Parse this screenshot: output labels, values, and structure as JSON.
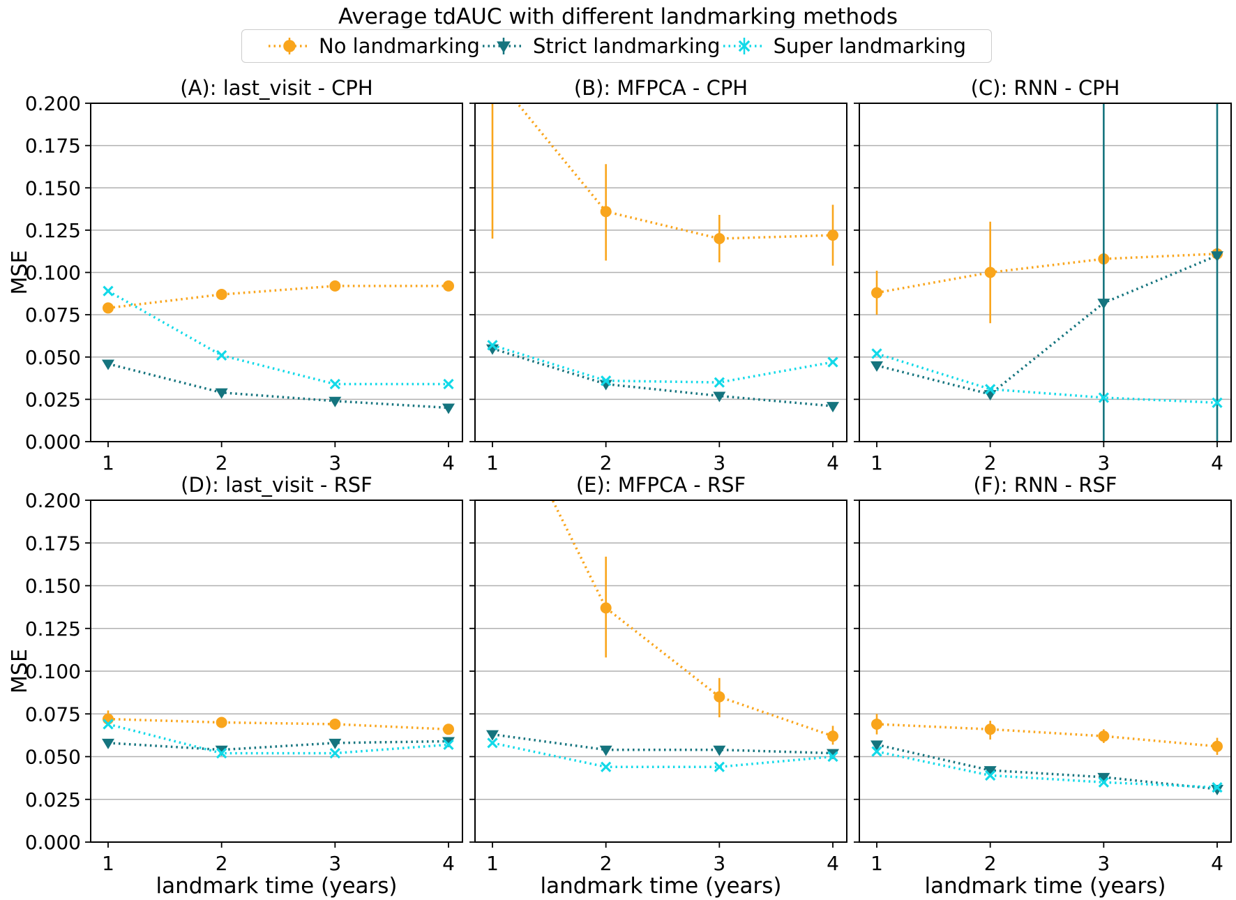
{
  "title": "Average tdAUC with different landmarking methods",
  "legend": [
    {
      "label": "No landmarking",
      "color": "#F9A51C",
      "marker": "circle"
    },
    {
      "label": "Strict landmarking",
      "color": "#15747E",
      "marker": "triangle-down"
    },
    {
      "label": "Super landmarking",
      "color": "#12D9E8",
      "marker": "x"
    }
  ],
  "axes": {
    "ylabel": "MSE",
    "xlabel": "landmark time (years)",
    "ylim": [
      0,
      0.2
    ],
    "ytick_labels": [
      "0.000",
      "0.025",
      "0.050",
      "0.075",
      "0.100",
      "0.125",
      "0.150",
      "0.175",
      "0.200"
    ],
    "xtick_labels": [
      "1",
      "2",
      "3",
      "4"
    ],
    "grid": true,
    "legend_position": "top-center"
  },
  "chart_data": [
    {
      "panel": "A",
      "title": "(A): last_visit - CPH",
      "type": "line",
      "x": [
        1,
        2,
        3,
        4
      ],
      "series": [
        {
          "name": "No landmarking",
          "values": [
            0.079,
            0.087,
            0.092,
            0.092
          ],
          "err_lo": [
            null,
            null,
            null,
            null
          ],
          "err_hi": [
            null,
            null,
            null,
            null
          ]
        },
        {
          "name": "Strict landmarking",
          "values": [
            0.046,
            0.029,
            0.024,
            0.02
          ],
          "err_lo": [
            null,
            null,
            null,
            null
          ],
          "err_hi": [
            null,
            null,
            null,
            null
          ]
        },
        {
          "name": "Super landmarking",
          "values": [
            0.089,
            0.051,
            0.034,
            0.034
          ],
          "err_lo": [
            null,
            null,
            null,
            null
          ],
          "err_hi": [
            null,
            null,
            null,
            null
          ]
        }
      ]
    },
    {
      "panel": "B",
      "title": "(B): MFPCA - CPH",
      "type": "line",
      "x": [
        1,
        2,
        3,
        4
      ],
      "series": [
        {
          "name": "No landmarking",
          "values": [
            0.218,
            0.136,
            0.12,
            0.122
          ],
          "err_lo": [
            0.12,
            0.107,
            0.106,
            0.104
          ],
          "err_hi": [
            0.33,
            0.164,
            0.134,
            0.14
          ]
        },
        {
          "name": "Strict landmarking",
          "values": [
            0.055,
            0.034,
            0.027,
            0.021
          ],
          "err_lo": [
            null,
            null,
            null,
            null
          ],
          "err_hi": [
            null,
            null,
            null,
            null
          ]
        },
        {
          "name": "Super landmarking",
          "values": [
            0.057,
            0.036,
            0.035,
            0.047
          ],
          "err_lo": [
            null,
            null,
            null,
            null
          ],
          "err_hi": [
            null,
            null,
            null,
            null
          ]
        }
      ]
    },
    {
      "panel": "C",
      "title": "(C): RNN - CPH",
      "type": "line",
      "x": [
        1,
        2,
        3,
        4
      ],
      "series": [
        {
          "name": "No landmarking",
          "values": [
            0.088,
            0.1,
            0.108,
            0.111
          ],
          "err_lo": [
            0.075,
            0.07,
            null,
            null
          ],
          "err_hi": [
            0.101,
            0.13,
            null,
            null
          ]
        },
        {
          "name": "Strict landmarking",
          "values": [
            0.045,
            0.028,
            0.082,
            0.11
          ],
          "err_lo": [
            null,
            null,
            -0.1,
            -0.1
          ],
          "err_hi": [
            null,
            null,
            0.4,
            0.4
          ]
        },
        {
          "name": "Super landmarking",
          "values": [
            0.052,
            0.031,
            0.026,
            0.023
          ],
          "err_lo": [
            null,
            null,
            null,
            null
          ],
          "err_hi": [
            null,
            null,
            null,
            null
          ]
        }
      ]
    },
    {
      "panel": "D",
      "title": "(D): last_visit - RSF",
      "type": "line",
      "x": [
        1,
        2,
        3,
        4
      ],
      "series": [
        {
          "name": "No landmarking",
          "values": [
            0.072,
            0.07,
            0.069,
            0.066
          ],
          "err_lo": [
            0.068,
            null,
            null,
            null
          ],
          "err_hi": [
            0.077,
            null,
            null,
            null
          ]
        },
        {
          "name": "Strict landmarking",
          "values": [
            0.058,
            0.054,
            0.058,
            0.059
          ],
          "err_lo": [
            null,
            null,
            null,
            null
          ],
          "err_hi": [
            null,
            null,
            null,
            null
          ]
        },
        {
          "name": "Super landmarking",
          "values": [
            0.069,
            0.052,
            0.052,
            0.057
          ],
          "err_lo": [
            null,
            null,
            null,
            null
          ],
          "err_hi": [
            null,
            null,
            null,
            null
          ]
        }
      ]
    },
    {
      "panel": "E",
      "title": "(E): MFPCA - RSF",
      "type": "line",
      "x": [
        1,
        2,
        3,
        4
      ],
      "series": [
        {
          "name": "No landmarking",
          "values": [
            0.271,
            0.137,
            0.085,
            0.062
          ],
          "err_lo": [
            null,
            0.108,
            0.073,
            0.057
          ],
          "err_hi": [
            null,
            0.167,
            0.096,
            0.068
          ]
        },
        {
          "name": "Strict landmarking",
          "values": [
            0.063,
            0.054,
            0.054,
            0.052
          ],
          "err_lo": [
            null,
            null,
            null,
            null
          ],
          "err_hi": [
            null,
            null,
            null,
            null
          ]
        },
        {
          "name": "Super landmarking",
          "values": [
            0.058,
            0.044,
            0.044,
            0.05
          ],
          "err_lo": [
            null,
            null,
            null,
            null
          ],
          "err_hi": [
            null,
            null,
            null,
            null
          ]
        }
      ]
    },
    {
      "panel": "F",
      "title": "(F): RNN - RSF",
      "type": "line",
      "x": [
        1,
        2,
        3,
        4
      ],
      "series": [
        {
          "name": "No landmarking",
          "values": [
            0.069,
            0.066,
            0.062,
            0.056
          ],
          "err_lo": [
            0.063,
            0.06,
            0.058,
            0.051
          ],
          "err_hi": [
            0.075,
            0.071,
            0.066,
            0.061
          ]
        },
        {
          "name": "Strict landmarking",
          "values": [
            0.057,
            0.042,
            0.038,
            0.031
          ],
          "err_lo": [
            null,
            null,
            null,
            null
          ],
          "err_hi": [
            null,
            null,
            null,
            null
          ]
        },
        {
          "name": "Super landmarking",
          "values": [
            0.053,
            0.039,
            0.035,
            0.032
          ],
          "err_lo": [
            null,
            null,
            null,
            null
          ],
          "err_hi": [
            null,
            null,
            null,
            null
          ]
        }
      ]
    }
  ]
}
